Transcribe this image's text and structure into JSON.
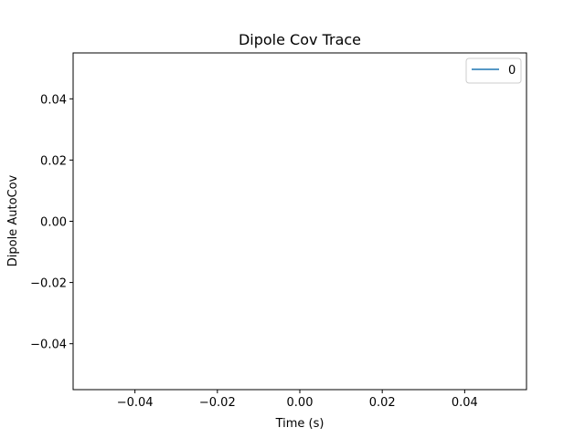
{
  "chart_data": {
    "type": "line",
    "title": "Dipole Cov Trace",
    "xlabel": "Time (s)",
    "ylabel": "Dipole AutoCov",
    "xlim": [
      -0.055,
      0.055
    ],
    "ylim": [
      -0.055,
      0.055
    ],
    "x_ticks": [
      -0.04,
      -0.02,
      0.0,
      0.02,
      0.04
    ],
    "x_tick_labels": [
      "−0.04",
      "−0.02",
      "0.00",
      "0.02",
      "0.04"
    ],
    "y_ticks": [
      -0.04,
      -0.02,
      0.0,
      0.02,
      0.04
    ],
    "y_tick_labels": [
      "−0.04",
      "−0.02",
      "0.00",
      "0.02",
      "0.04"
    ],
    "grid": false,
    "legend_position": "top-right",
    "series": [
      {
        "name": "0",
        "color": "#1f77b4",
        "x": [],
        "y": []
      }
    ]
  }
}
